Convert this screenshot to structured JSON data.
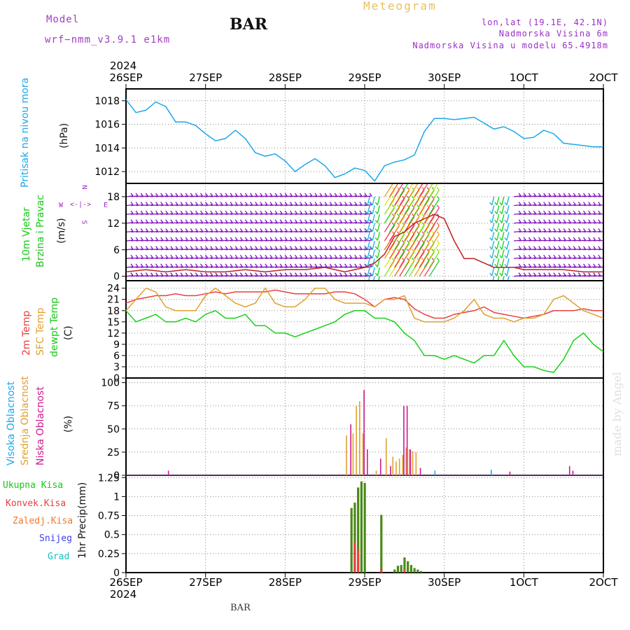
{
  "header": {
    "model_label": "Model",
    "model_name": "wrf−nmm_v3.9.1  e1km",
    "station": "BAR",
    "meteogram": "Meteogram",
    "lonlat": "lon,lat (19.1E, 42.1N)",
    "elevation": "Nadmorska Visina 6m",
    "model_elevation": "Nadmorska Visina u modelu 65.4918m",
    "footer_station": "BAR",
    "watermark": "made by Angel"
  },
  "colors": {
    "pressure": "#1ca7e8",
    "temp2m": "#e84040",
    "sfc": "#e0a030",
    "dewpt": "#18d018",
    "high_cloud": "#1ca7e8",
    "mid_cloud": "#e0a030",
    "low_cloud": "#d01890",
    "total": "#4a8a18",
    "convective": "#e84040",
    "frozen": "#f07830",
    "snow": "#4040e0",
    "graupel": "#18c0c0",
    "wind_purple": "#8010c0"
  },
  "chart_data": [
    {
      "type": "line",
      "title": "Pritisak na nivou mora",
      "ylabel": "(hPa)",
      "ylim": [
        1011,
        1019
      ],
      "yticks": [
        1012,
        1014,
        1016,
        1018
      ],
      "x_hours": [
        0,
        3,
        6,
        9,
        12,
        15,
        18,
        21,
        24,
        27,
        30,
        33,
        36,
        39,
        42,
        45,
        48,
        51,
        54,
        57,
        60,
        63,
        66,
        69,
        72,
        75,
        78,
        81,
        84,
        87,
        90,
        93,
        96,
        99,
        102,
        105,
        108,
        111,
        114,
        117,
        120,
        123,
        126,
        129,
        132,
        135,
        138,
        141,
        144
      ],
      "values": [
        1018.1,
        1017.0,
        1017.2,
        1017.9,
        1017.5,
        1016.2,
        1016.2,
        1015.9,
        1015.2,
        1014.6,
        1014.8,
        1015.5,
        1014.8,
        1013.6,
        1013.3,
        1013.5,
        1012.9,
        1012.0,
        1012.6,
        1013.1,
        1012.5,
        1011.5,
        1011.8,
        1012.3,
        1012.1,
        1011.2,
        1012.5,
        1012.8,
        1013.0,
        1013.4,
        1015.4,
        1016.5,
        1016.5,
        1016.4,
        1016.5,
        1016.6,
        1016.1,
        1015.6,
        1015.8,
        1015.4,
        1014.8,
        1014.9,
        1015.5,
        1015.2,
        1014.4,
        1014.3,
        1014.2,
        1014.1,
        1014.1
      ]
    },
    {
      "type": "line",
      "title": "10m Vjetar Brzina i Pravac",
      "ylabel": "(m/s)",
      "ylim": [
        -1,
        21
      ],
      "yticks": [
        0,
        6,
        12,
        18
      ],
      "compass": {
        "n": "N",
        "s": "S",
        "e": "E",
        "w": "W"
      },
      "x_hours": [
        0,
        6,
        12,
        18,
        24,
        30,
        36,
        42,
        48,
        54,
        60,
        66,
        72,
        75,
        78,
        81,
        84,
        87,
        90,
        93,
        96,
        99,
        102,
        105,
        108,
        111,
        114,
        117,
        120,
        126,
        132,
        138,
        144
      ],
      "speed": [
        1,
        1.5,
        1,
        1.5,
        1,
        1,
        1.5,
        1,
        1.5,
        1.5,
        2,
        1,
        2,
        3,
        5,
        9,
        10,
        12,
        13,
        14,
        13,
        8,
        4,
        4,
        3,
        2,
        2,
        2,
        1.5,
        1.5,
        1.5,
        1,
        1
      ]
    },
    {
      "type": "line",
      "title": "2m Temp / SFC Temp / dewpt Temp",
      "ylabel": "(C)",
      "ylim": [
        0,
        26
      ],
      "yticks": [
        0,
        3,
        6,
        9,
        12,
        15,
        18,
        21,
        24
      ],
      "x_hours": [
        0,
        3,
        6,
        9,
        12,
        15,
        18,
        21,
        24,
        27,
        30,
        33,
        36,
        39,
        42,
        45,
        48,
        51,
        54,
        57,
        60,
        63,
        66,
        69,
        72,
        75,
        78,
        81,
        84,
        87,
        90,
        93,
        96,
        99,
        102,
        105,
        108,
        111,
        114,
        117,
        120,
        123,
        126,
        129,
        132,
        135,
        138,
        141,
        144
      ],
      "series": [
        {
          "name": "2m Temp",
          "values": [
            20,
            21,
            21.5,
            22,
            22,
            22.5,
            22,
            22,
            22.5,
            23,
            22.5,
            23,
            23,
            23,
            23,
            23.5,
            23,
            22.5,
            22.5,
            22.5,
            22.5,
            23,
            23,
            22.5,
            21,
            19,
            21,
            21.5,
            21,
            18.5,
            17,
            16,
            16,
            17,
            17.5,
            18,
            19,
            17.5,
            17,
            16.5,
            16,
            16.5,
            17,
            18,
            18,
            18,
            18.5,
            18,
            18
          ]
        },
        {
          "name": "SFC Temp",
          "values": [
            18,
            21,
            24,
            23,
            19,
            18,
            18,
            18,
            22,
            24,
            22,
            20,
            19,
            20,
            24,
            20,
            19,
            19,
            21,
            24,
            24,
            21,
            20,
            20,
            20,
            19,
            21,
            21,
            22,
            16,
            15,
            15,
            15,
            16,
            18,
            21,
            17,
            16,
            16,
            15,
            16,
            16,
            17,
            21,
            22,
            20,
            18,
            17,
            16
          ]
        },
        {
          "name": "dewpt Temp",
          "values": [
            18,
            15,
            16,
            17,
            15,
            15,
            16,
            15,
            17,
            18,
            16,
            16,
            17,
            14,
            14,
            12,
            12,
            11,
            12,
            13,
            14,
            15,
            17,
            18,
            18,
            16,
            16,
            15,
            12,
            10,
            6,
            6,
            5,
            6,
            5,
            4,
            6,
            6,
            10,
            6,
            3,
            3,
            2,
            1.5,
            5,
            10,
            12,
            9,
            7
          ]
        }
      ]
    },
    {
      "type": "bar",
      "title": "Visoka / Srednja / Niska Oblacnost",
      "ylabel": "(%)",
      "ylim": [
        0,
        105
      ],
      "yticks": [
        0,
        25,
        50,
        75,
        100
      ],
      "series": [
        {
          "name": "Visoka Oblacnost",
          "bars": [
            [
              93,
              5
            ],
            [
              110,
              6
            ]
          ]
        },
        {
          "name": "Srednja Oblacnost",
          "bars": [
            [
              66,
              43
            ],
            [
              68,
              45
            ],
            [
              69,
              75
            ],
            [
              70,
              80
            ],
            [
              71,
              45
            ],
            [
              75,
              5
            ],
            [
              78,
              40
            ],
            [
              80,
              20
            ],
            [
              81,
              15
            ],
            [
              82,
              18
            ],
            [
              83,
              22
            ],
            [
              84,
              30
            ],
            [
              85,
              28
            ],
            [
              86,
              26
            ],
            [
              87,
              25
            ]
          ]
        },
        {
          "name": "Niska Oblacnost",
          "bars": [
            [
              12,
              5
            ],
            [
              67,
              55
            ],
            [
              71,
              92
            ],
            [
              72,
              28
            ],
            [
              76,
              18
            ],
            [
              79,
              10
            ],
            [
              83,
              75
            ],
            [
              84,
              75
            ],
            [
              85,
              28
            ],
            [
              88,
              8
            ],
            [
              115,
              4
            ],
            [
              133,
              10
            ],
            [
              134,
              5
            ]
          ]
        }
      ]
    },
    {
      "type": "bar",
      "title": "1hr Precip",
      "ylabel": "(mm)",
      "ylim": [
        0,
        1.28
      ],
      "yticks": [
        0,
        0.25,
        0.5,
        0.75,
        1,
        1.25
      ],
      "ytick_labels": [
        "0",
        "0.25",
        "0.5",
        "0.75",
        "1",
        "1.25"
      ],
      "series": [
        {
          "name": "Ukupna Kisa",
          "bars": [
            [
              68,
              0.85
            ],
            [
              69,
              0.92
            ],
            [
              70,
              1.12
            ],
            [
              71,
              1.2
            ],
            [
              72,
              1.18
            ],
            [
              77,
              0.76
            ],
            [
              81,
              0.04
            ],
            [
              82,
              0.09
            ],
            [
              83,
              0.1
            ],
            [
              84,
              0.2
            ],
            [
              85,
              0.15
            ],
            [
              86,
              0.1
            ],
            [
              87,
              0.06
            ],
            [
              88,
              0.04
            ],
            [
              89,
              0.02
            ]
          ]
        },
        {
          "name": "Konvek.Kisa",
          "bars": [
            [
              69,
              0.4
            ],
            [
              70,
              0.3
            ],
            [
              77,
              0.05
            ],
            [
              84,
              0.04
            ]
          ]
        },
        {
          "name": "Zaledj.Kisa",
          "bars": []
        },
        {
          "name": "Snijeg",
          "bars": []
        },
        {
          "name": "Grad",
          "bars": []
        }
      ]
    }
  ],
  "time_axis": {
    "year": "2024",
    "labels": [
      "26SEP",
      "27SEP",
      "28SEP",
      "29SEP",
      "30SEP",
      "1OCT",
      "2OCT"
    ],
    "total_hours": 144
  },
  "legends": {
    "pressure": [
      "Pritisak na nivou mora"
    ],
    "wind": [
      "10m Vjetar",
      "Brzina i Pravac"
    ],
    "temp": [
      "2m Temp",
      "SFC Temp",
      "dewpt Temp"
    ],
    "cloud": [
      "Visoka Oblacnost",
      "Srednja Oblacnost",
      "Niska Oblacnost"
    ],
    "precip": [
      "Ukupna Kisa",
      "Konvek.Kisa",
      "Zaledj.Kisa",
      "Snijeg",
      "Grad"
    ],
    "precip_ylabel": "1hr Precip"
  }
}
